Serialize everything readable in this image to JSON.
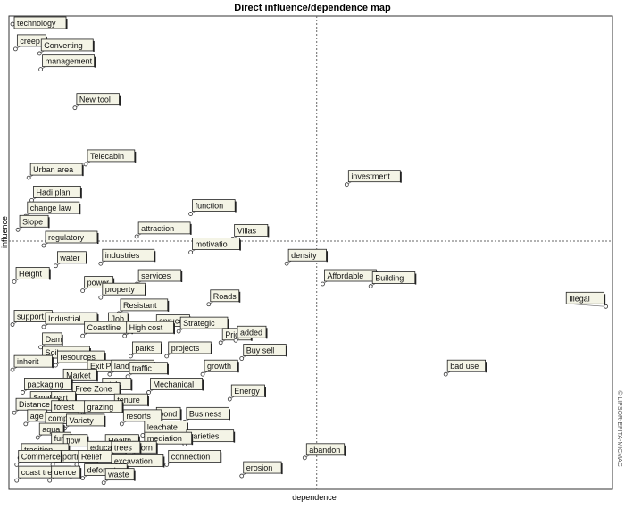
{
  "chart_data": {
    "type": "scatter",
    "title": "Direct influence/dependence map",
    "xlabel": "dependence",
    "ylabel": "influence",
    "side_note": "© LIPSOR-EPITA-MICMAC",
    "xlim": [
      0,
      100
    ],
    "ylim": [
      0,
      100
    ],
    "divider": {
      "x": 51,
      "y": 51
    },
    "grid": false,
    "legend": "none",
    "colors": {
      "label_fill": "#f4f4e6",
      "label_border": "#222222",
      "leader": "#666666",
      "axis": "#333333"
    },
    "points": [
      {
        "label": "technology",
        "x": 0.3,
        "y": 99.0
      },
      {
        "label": "creep",
        "x": 0.8,
        "y": 93.5
      },
      {
        "label": "Converting",
        "x": 4.8,
        "y": 92.5
      },
      {
        "label": "management",
        "x": 5.0,
        "y": 89.0
      },
      {
        "label": "New tool",
        "x": 10.7,
        "y": 80.5
      },
      {
        "label": "Telecabin",
        "x": 12.5,
        "y": 68.0
      },
      {
        "label": "Urban area",
        "x": 3.0,
        "y": 65.0
      },
      {
        "label": "Hadi plan",
        "x": 3.5,
        "y": 60.0
      },
      {
        "label": "change law",
        "x": 2.5,
        "y": 56.5
      },
      {
        "label": "Slope",
        "x": 1.2,
        "y": 53.5
      },
      {
        "label": "regulatory",
        "x": 5.5,
        "y": 50.0
      },
      {
        "label": "function",
        "x": 30.0,
        "y": 57.0
      },
      {
        "label": "investment",
        "x": 56.0,
        "y": 63.5
      },
      {
        "label": "Villas",
        "x": 37.0,
        "y": 51.5
      },
      {
        "label": "attraction",
        "x": 21.0,
        "y": 52.0
      },
      {
        "label": "motivatio",
        "x": 30.0,
        "y": 48.5
      },
      {
        "label": "density",
        "x": 46.0,
        "y": 46.0
      },
      {
        "label": "water",
        "x": 7.5,
        "y": 45.5
      },
      {
        "label": "industries",
        "x": 15.0,
        "y": 46.0
      },
      {
        "label": "Height",
        "x": 0.6,
        "y": 42.0
      },
      {
        "label": "Affordable",
        "x": 52.0,
        "y": 41.5
      },
      {
        "label": "Building",
        "x": 60.0,
        "y": 41.0
      },
      {
        "label": "services",
        "x": 21.0,
        "y": 41.5
      },
      {
        "label": "power",
        "x": 12.0,
        "y": 40.0
      },
      {
        "label": "property",
        "x": 15.0,
        "y": 38.5
      },
      {
        "label": "Roads",
        "x": 33.0,
        "y": 37.0
      },
      {
        "label": "Illegal",
        "x": 99.2,
        "y": 36.5
      },
      {
        "label": "Resistant",
        "x": 18.0,
        "y": 35.0
      },
      {
        "label": "support",
        "x": 0.3,
        "y": 32.5
      },
      {
        "label": "Job",
        "x": 16.0,
        "y": 32.0
      },
      {
        "label": "spruce",
        "x": 24.0,
        "y": 31.5
      },
      {
        "label": "Industrial",
        "x": 5.5,
        "y": 32.0
      },
      {
        "label": "Coastline",
        "x": 12.0,
        "y": 30.0
      },
      {
        "label": "High cost",
        "x": 19.0,
        "y": 30.0
      },
      {
        "label": "Strategic",
        "x": 28.0,
        "y": 31.0
      },
      {
        "label": "Dam",
        "x": 5.0,
        "y": 27.5
      },
      {
        "label": "Price",
        "x": 35.0,
        "y": 28.5
      },
      {
        "label": "added",
        "x": 37.5,
        "y": 29.0
      },
      {
        "label": "parks",
        "x": 20.0,
        "y": 25.5
      },
      {
        "label": "projects",
        "x": 26.0,
        "y": 25.5
      },
      {
        "label": "Soil type",
        "x": 5.0,
        "y": 24.5
      },
      {
        "label": "resources",
        "x": 7.5,
        "y": 23.5
      },
      {
        "label": "Buy sell",
        "x": 38.5,
        "y": 25.0
      },
      {
        "label": "inherit",
        "x": 0.3,
        "y": 22.5
      },
      {
        "label": "Exit Plan",
        "x": 12.5,
        "y": 21.5
      },
      {
        "label": "landfill",
        "x": 16.5,
        "y": 21.5
      },
      {
        "label": "traffic",
        "x": 19.5,
        "y": 21.0
      },
      {
        "label": "bad use",
        "x": 72.5,
        "y": 21.5
      },
      {
        "label": "growth",
        "x": 32.0,
        "y": 21.5
      },
      {
        "label": "Market",
        "x": 8.5,
        "y": 19.5
      },
      {
        "label": "packaging",
        "x": 2.0,
        "y": 17.5
      },
      {
        "label": "style",
        "x": 15.0,
        "y": 17.5
      },
      {
        "label": "Mechanical",
        "x": 23.0,
        "y": 17.5
      },
      {
        "label": "Free Zone",
        "x": 10.0,
        "y": 16.5
      },
      {
        "label": "Energy",
        "x": 36.5,
        "y": 16.0
      },
      {
        "label": "Small",
        "x": 3.0,
        "y": 14.5
      },
      {
        "label": "part",
        "x": 6.5,
        "y": 14.5
      },
      {
        "label": "tenure",
        "x": 17.0,
        "y": 14.0
      },
      {
        "label": "Distance",
        "x": 0.6,
        "y": 13.0
      },
      {
        "label": "forest",
        "x": 6.5,
        "y": 12.5
      },
      {
        "label": "grazing",
        "x": 12.0,
        "y": 12.5
      },
      {
        "label": "pond",
        "x": 24.0,
        "y": 11.0
      },
      {
        "label": "Business",
        "x": 29.0,
        "y": 11.0
      },
      {
        "label": "resorts",
        "x": 18.5,
        "y": 10.5
      },
      {
        "label": "age",
        "x": 2.5,
        "y": 10.5
      },
      {
        "label": "compet",
        "x": 5.5,
        "y": 10.0
      },
      {
        "label": "Variety",
        "x": 9.0,
        "y": 9.5
      },
      {
        "label": "leachate",
        "x": 22.0,
        "y": 8.0
      },
      {
        "label": "aqua",
        "x": 4.5,
        "y": 7.5
      },
      {
        "label": "varieties",
        "x": 29.0,
        "y": 6.0
      },
      {
        "label": "mediation",
        "x": 22.0,
        "y": 5.5
      },
      {
        "label": "fur",
        "x": 6.5,
        "y": 5.5
      },
      {
        "label": "flow",
        "x": 8.5,
        "y": 5.0
      },
      {
        "label": "Health",
        "x": 15.5,
        "y": 5.0
      },
      {
        "label": "worn",
        "x": 20.0,
        "y": 3.5
      },
      {
        "label": "educate",
        "x": 12.5,
        "y": 3.5
      },
      {
        "label": "trees",
        "x": 16.5,
        "y": 3.5
      },
      {
        "label": "tradition",
        "x": 1.5,
        "y": 3.0
      },
      {
        "label": "Sporting",
        "x": 7.0,
        "y": 1.5
      },
      {
        "label": "Relief",
        "x": 11.0,
        "y": 1.5
      },
      {
        "label": "abandon",
        "x": 49.0,
        "y": 3.0
      },
      {
        "label": "connection",
        "x": 26.0,
        "y": 1.5
      },
      {
        "label": "Commerce",
        "x": 1.0,
        "y": 1.5
      },
      {
        "label": "excavation",
        "x": 16.5,
        "y": 0.5
      },
      {
        "label": "erosion",
        "x": 38.5,
        "y": -1.0
      },
      {
        "label": "deforest",
        "x": 12.0,
        "y": -1.5
      },
      {
        "label": "waste",
        "x": 15.5,
        "y": -2.5
      },
      {
        "label": "coast tree",
        "x": 1.0,
        "y": -2.0
      },
      {
        "label": "uence",
        "x": 6.5,
        "y": -2.0
      }
    ]
  }
}
